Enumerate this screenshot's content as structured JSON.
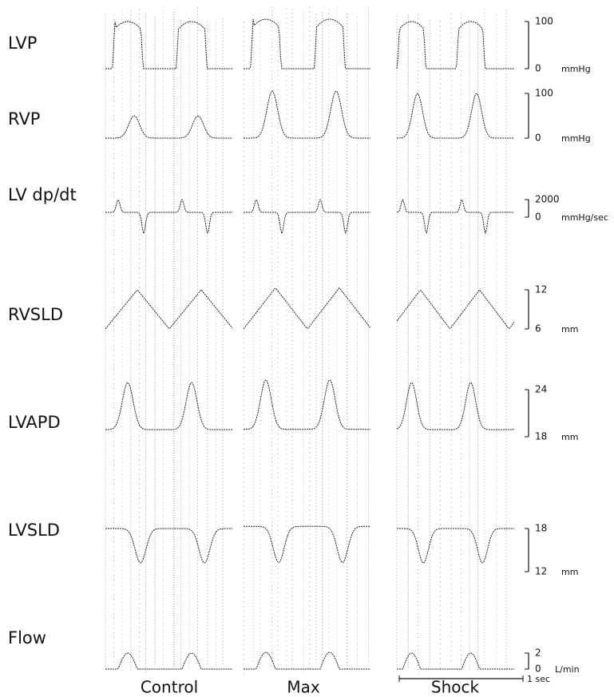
{
  "columns": [
    "Control",
    "Max",
    "Shock"
  ],
  "rows": [
    {
      "label": "LVP",
      "scale": {
        "top": "100",
        "bottom": "0",
        "unit": "mmHg"
      }
    },
    {
      "label": "RVP",
      "scale": {
        "top": "100",
        "bottom": "0",
        "unit": "mmHg"
      }
    },
    {
      "label": "LV dp/dt",
      "scale": {
        "top": "2000",
        "bottom": "0",
        "unit": "mmHg/sec"
      }
    },
    {
      "label": "RVSLD",
      "scale": {
        "top": "12",
        "bottom": "6",
        "unit": "mm"
      }
    },
    {
      "label": "LVAPD",
      "scale": {
        "top": "24",
        "bottom": "18",
        "unit": "mm"
      }
    },
    {
      "label": "LVSLD",
      "scale": {
        "top": "18",
        "bottom": "12",
        "unit": "mm"
      }
    },
    {
      "label": "Flow",
      "scale": {
        "top": "2",
        "bottom": "0",
        "unit": "L/min"
      }
    }
  ],
  "time_scale": "1 sec"
}
